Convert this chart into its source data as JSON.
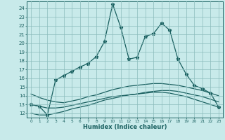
{
  "title": "",
  "xlabel": "Humidex (Indice chaleur)",
  "background_color": "#c8eaea",
  "grid_color": "#8bbcbc",
  "line_color": "#1a6060",
  "x_ticks": [
    0,
    1,
    2,
    3,
    4,
    5,
    6,
    7,
    8,
    9,
    10,
    11,
    12,
    13,
    14,
    15,
    16,
    17,
    18,
    19,
    20,
    21,
    22,
    23
  ],
  "ylim": [
    11.5,
    24.8
  ],
  "xlim": [
    -0.5,
    23.5
  ],
  "series1_x": [
    0,
    1,
    2,
    3,
    4,
    5,
    6,
    7,
    8,
    9,
    10,
    11,
    12,
    13,
    14,
    15,
    16,
    17,
    18,
    19,
    20,
    21,
    22,
    23
  ],
  "series1_y": [
    13.0,
    12.8,
    11.8,
    15.8,
    16.3,
    16.8,
    17.3,
    17.7,
    18.5,
    20.2,
    24.5,
    21.8,
    18.2,
    18.4,
    20.8,
    21.1,
    22.3,
    21.5,
    18.2,
    16.5,
    15.2,
    14.8,
    14.3,
    12.7
  ],
  "series2_x": [
    0,
    1,
    2,
    3,
    4,
    5,
    6,
    7,
    8,
    9,
    10,
    11,
    12,
    13,
    14,
    15,
    16,
    17,
    18,
    19,
    20,
    21,
    22,
    23
  ],
  "series2_y": [
    12.0,
    11.8,
    11.8,
    12.0,
    12.2,
    12.5,
    12.7,
    12.9,
    13.2,
    13.5,
    13.7,
    13.9,
    14.1,
    14.2,
    14.3,
    14.4,
    14.4,
    14.3,
    14.1,
    13.9,
    13.6,
    13.3,
    13.0,
    12.7
  ],
  "series3_x": [
    0,
    1,
    2,
    3,
    4,
    5,
    6,
    7,
    8,
    9,
    10,
    11,
    12,
    13,
    14,
    15,
    16,
    17,
    18,
    19,
    20,
    21,
    22,
    23
  ],
  "series3_y": [
    14.2,
    13.8,
    13.5,
    13.3,
    13.2,
    13.4,
    13.6,
    13.9,
    14.1,
    14.4,
    14.7,
    14.9,
    15.1,
    15.2,
    15.3,
    15.4,
    15.4,
    15.3,
    15.2,
    15.0,
    14.8,
    14.6,
    14.3,
    14.0
  ],
  "series4_x": [
    0,
    1,
    2,
    3,
    4,
    5,
    6,
    7,
    8,
    9,
    10,
    11,
    12,
    13,
    14,
    15,
    16,
    17,
    18,
    19,
    20,
    21,
    22,
    23
  ],
  "series4_y": [
    13.0,
    12.8,
    12.6,
    12.6,
    12.7,
    12.9,
    13.1,
    13.3,
    13.5,
    13.7,
    13.9,
    14.0,
    14.1,
    14.2,
    14.4,
    14.5,
    14.6,
    14.6,
    14.5,
    14.3,
    14.1,
    13.9,
    13.6,
    13.3
  ],
  "yticks": [
    12,
    13,
    14,
    15,
    16,
    17,
    18,
    19,
    20,
    21,
    22,
    23,
    24
  ],
  "marker": "*",
  "markersize": 3.5,
  "linewidth": 0.9
}
